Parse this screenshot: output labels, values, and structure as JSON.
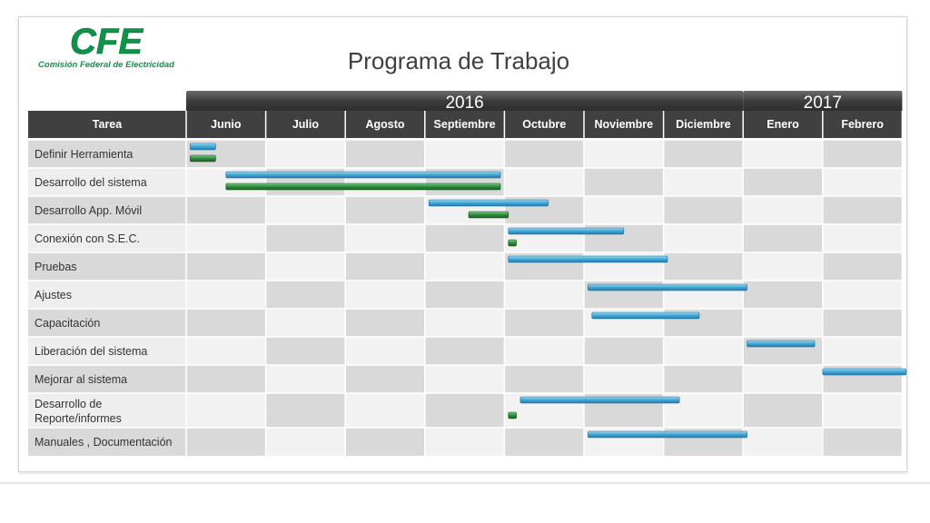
{
  "logo": {
    "mark": "CFE",
    "name": "Comisión Federal de Electricidad",
    "color": "#0d9448"
  },
  "title": "Programa de Trabajo",
  "colors": {
    "header_bg": "#404040",
    "year_bg": "#3a3a3a",
    "row_light": "#f2f2f2",
    "row_dark": "#d9d9d9",
    "plan_bar": "#4aaed8",
    "actual_bar": "#2e8b3c"
  },
  "chart_data": {
    "type": "gantt",
    "years": [
      {
        "label": "2016",
        "start_month": 0,
        "span_months": 7
      },
      {
        "label": "2017",
        "start_month": 7,
        "span_months": 2
      }
    ],
    "task_header": "Tarea",
    "months": [
      "Junio",
      "Julio",
      "Agosto",
      "Septiembre",
      "Octubre",
      "Noviembre",
      "Diciembre",
      "Enero",
      "Febrero"
    ],
    "tasks": [
      {
        "name": "Definir Herramienta",
        "plan": [
          0.05,
          0.37
        ],
        "actual": [
          0.05,
          0.37
        ]
      },
      {
        "name": "Desarrollo del sistema",
        "plan": [
          0.5,
          3.95
        ],
        "actual": [
          0.5,
          3.95
        ]
      },
      {
        "name": "Desarrollo App. Móvil",
        "plan": [
          3.05,
          4.55
        ],
        "actual": [
          3.55,
          4.05
        ]
      },
      {
        "name": "Conexión con S.E.C.",
        "plan": [
          4.05,
          5.5
        ],
        "actual": [
          4.05,
          4.15
        ]
      },
      {
        "name": "Pruebas",
        "plan": [
          4.05,
          6.05
        ],
        "actual": null
      },
      {
        "name": "Ajustes",
        "plan": [
          5.05,
          7.05
        ],
        "actual": null
      },
      {
        "name": "Capacitación",
        "plan": [
          5.1,
          6.45
        ],
        "actual": null
      },
      {
        "name": "Liberación del sistema",
        "plan": [
          7.05,
          7.9
        ],
        "actual": null
      },
      {
        "name": "Mejorar al sistema",
        "plan": [
          8.0,
          9.05
        ],
        "actual": null
      },
      {
        "name": "Desarrollo de\nReporte/informes",
        "plan": [
          4.2,
          6.2
        ],
        "actual": [
          4.05,
          4.15
        ]
      },
      {
        "name": "Manuales , Documentación",
        "plan": [
          5.05,
          7.05
        ],
        "actual": null
      }
    ]
  }
}
